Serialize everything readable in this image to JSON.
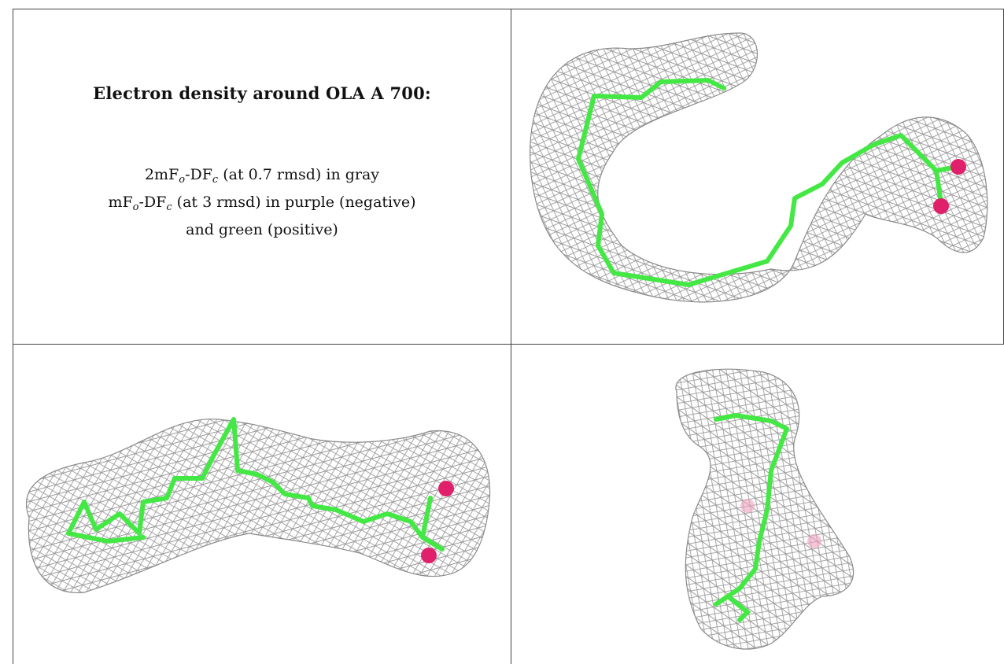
{
  "title": "Electron density around OLA A 700:",
  "legend": {
    "line1_prefix": "2mF",
    "line1_sub_o": "o",
    "line1_mid": "-DF",
    "line1_sub_c": "c",
    "line1_suffix": " (at 0.7 rmsd) in gray",
    "line2_prefix": "mF",
    "line2_sub_o": "o",
    "line2_mid": "-DF",
    "line2_sub_c": "c",
    "line2_suffix": " (at 3 rmsd) in purple (negative)",
    "line3": "and green (positive)"
  },
  "colors": {
    "mesh": "#9a9a9a",
    "carbon": "#44e844",
    "oxygen": "#e0206a",
    "border": "#444444"
  },
  "panels": [
    {
      "name": "top-right-view",
      "icon": "electron-density-mesh"
    },
    {
      "name": "bottom-left-view",
      "icon": "electron-density-mesh"
    },
    {
      "name": "bottom-right-view",
      "icon": "electron-density-mesh"
    }
  ]
}
